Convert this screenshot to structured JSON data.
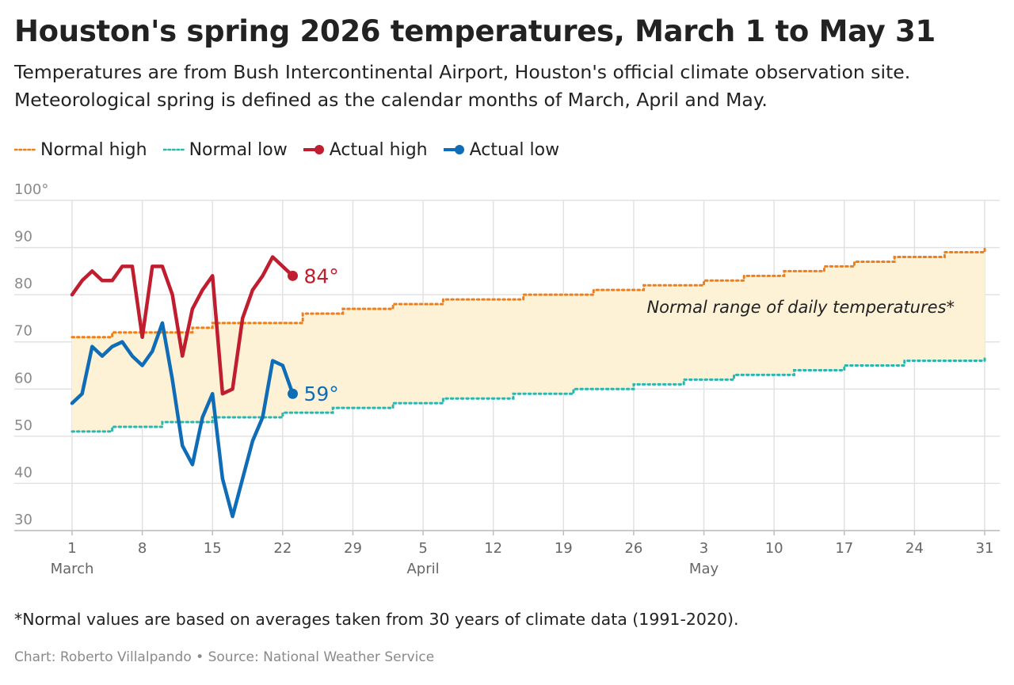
{
  "header": {
    "title": "Houston's spring 2026 temperatures, March 1 to May 31",
    "subtitle_line1": "Temperatures are from Bush Intercontinental Airport, Houston's official climate observation site.",
    "subtitle_line2": "Meteorological spring is defined as the calendar months of March, April and May."
  },
  "legend": [
    {
      "label": "Normal high",
      "style": "dotted",
      "color": "#f07f1a"
    },
    {
      "label": "Normal low",
      "style": "dotted",
      "color": "#2bb6b0"
    },
    {
      "label": "Actual high",
      "style": "line-dot",
      "color": "#c01d2f"
    },
    {
      "label": "Actual low",
      "style": "line-dot",
      "color": "#0f6cb6"
    }
  ],
  "footer": {
    "footnote": "*Normal values are based on averages taken from 30 years of climate data (1991-2020).",
    "credit": "Chart: Roberto Villalpando • Source: National Weather Service"
  },
  "chart_data": {
    "type": "line",
    "x_unit": "date (2026)",
    "xlim": [
      "2026-03-01",
      "2026-05-31"
    ],
    "ylim": [
      30,
      100
    ],
    "y_ticks": [
      30,
      40,
      50,
      60,
      70,
      80,
      90,
      100
    ],
    "y_tick_labels": [
      "30",
      "40",
      "50",
      "60",
      "70",
      "80",
      "90",
      "100°"
    ],
    "x_ticks": [
      "2026-03-01",
      "2026-03-08",
      "2026-03-15",
      "2026-03-22",
      "2026-03-29",
      "2026-04-05",
      "2026-04-12",
      "2026-04-19",
      "2026-04-26",
      "2026-05-03",
      "2026-05-10",
      "2026-05-17",
      "2026-05-24",
      "2026-05-31"
    ],
    "x_tick_labels": [
      "1",
      "8",
      "15",
      "22",
      "29",
      "5",
      "12",
      "19",
      "26",
      "3",
      "10",
      "17",
      "24",
      "31"
    ],
    "month_labels": [
      {
        "date": "2026-03-01",
        "label": "March"
      },
      {
        "date": "2026-04-05",
        "label": "April"
      },
      {
        "date": "2026-05-03",
        "label": "May"
      }
    ],
    "grid": true,
    "band_annotation": "Normal range of daily temperatures*",
    "band_color": "#fdf1d6",
    "series": [
      {
        "name": "Normal high",
        "color": "#f07f1a",
        "style": "dotted",
        "step": true,
        "x": [
          "2026-03-01",
          "2026-03-05",
          "2026-03-13",
          "2026-03-15",
          "2026-03-24",
          "2026-03-28",
          "2026-04-02",
          "2026-04-07",
          "2026-04-15",
          "2026-04-22",
          "2026-04-27",
          "2026-05-03",
          "2026-05-07",
          "2026-05-11",
          "2026-05-15",
          "2026-05-18",
          "2026-05-22",
          "2026-05-27",
          "2026-05-31"
        ],
        "values": [
          71,
          72,
          73,
          74,
          76,
          77,
          78,
          79,
          80,
          81,
          82,
          83,
          84,
          85,
          86,
          87,
          88,
          89,
          90
        ]
      },
      {
        "name": "Normal low",
        "color": "#2bb6b0",
        "style": "dotted",
        "step": true,
        "x": [
          "2026-03-01",
          "2026-03-05",
          "2026-03-10",
          "2026-03-15",
          "2026-03-22",
          "2026-03-27",
          "2026-04-02",
          "2026-04-07",
          "2026-04-14",
          "2026-04-20",
          "2026-04-26",
          "2026-05-01",
          "2026-05-06",
          "2026-05-12",
          "2026-05-17",
          "2026-05-23",
          "2026-05-31"
        ],
        "values": [
          51,
          52,
          53,
          54,
          55,
          56,
          57,
          58,
          59,
          60,
          61,
          62,
          63,
          64,
          65,
          66,
          67
        ]
      },
      {
        "name": "Actual high",
        "color": "#c01d2f",
        "end_label": "84°",
        "x": [
          "2026-03-01",
          "2026-03-02",
          "2026-03-03",
          "2026-03-04",
          "2026-03-05",
          "2026-03-06",
          "2026-03-07",
          "2026-03-08",
          "2026-03-09",
          "2026-03-10",
          "2026-03-11",
          "2026-03-12",
          "2026-03-13",
          "2026-03-14",
          "2026-03-15",
          "2026-03-16",
          "2026-03-17",
          "2026-03-18",
          "2026-03-19",
          "2026-03-20",
          "2026-03-21",
          "2026-03-22",
          "2026-03-23"
        ],
        "values": [
          80,
          83,
          85,
          83,
          83,
          86,
          86,
          71,
          86,
          86,
          80,
          67,
          77,
          81,
          84,
          59,
          60,
          75,
          81,
          84,
          88,
          86,
          84
        ]
      },
      {
        "name": "Actual low",
        "color": "#0f6cb6",
        "end_label": "59°",
        "x": [
          "2026-03-01",
          "2026-03-02",
          "2026-03-03",
          "2026-03-04",
          "2026-03-05",
          "2026-03-06",
          "2026-03-07",
          "2026-03-08",
          "2026-03-09",
          "2026-03-10",
          "2026-03-11",
          "2026-03-12",
          "2026-03-13",
          "2026-03-14",
          "2026-03-15",
          "2026-03-16",
          "2026-03-17",
          "2026-03-18",
          "2026-03-19",
          "2026-03-20",
          "2026-03-21",
          "2026-03-22",
          "2026-03-23"
        ],
        "values": [
          57,
          59,
          69,
          67,
          69,
          70,
          67,
          65,
          68,
          74,
          62,
          48,
          44,
          54,
          59,
          41,
          33,
          41,
          49,
          54,
          66,
          65,
          59
        ]
      }
    ]
  }
}
